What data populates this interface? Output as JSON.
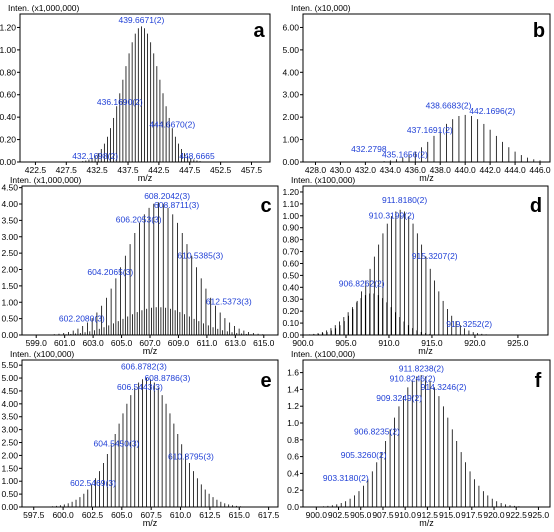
{
  "chart_data": [
    {
      "panel": "a",
      "type": "bar",
      "ylabel": "Inten. (x1,000,000)",
      "xlabel": "m/z",
      "xlim": [
        420.0,
        460.5
      ],
      "ylim": [
        0,
        1.32
      ],
      "xticks": [
        "422.5",
        "427.5",
        "432.5",
        "437.5",
        "442.5",
        "447.5",
        "452.5",
        "457.5"
      ],
      "yticks": [
        "0.00",
        "0.20",
        "0.40",
        "0.60",
        "0.80",
        "1.00",
        "1.20"
      ],
      "charge": 2,
      "apex": 439.6671,
      "apexHeight": 1.21,
      "sigma": 3.0,
      "overlaps": [],
      "annotations": [
        {
          "text": "439.6671(2)",
          "x": 439.6671,
          "y": 1.23
        },
        {
          "text": "436.1690(2)",
          "x": 436.169,
          "y": 0.5
        },
        {
          "text": "444.6670(2)",
          "x": 444.667,
          "y": 0.3
        },
        {
          "text": "432.1698(2)",
          "x": 432.1698,
          "y": 0.02
        },
        {
          "text": "448.6665",
          "x": 448.6665,
          "y": 0.02
        }
      ]
    },
    {
      "panel": "b",
      "type": "bar",
      "ylabel": "Inten. (x10,000)",
      "xlabel": "m/z",
      "xlim": [
        427.0,
        446.8
      ],
      "ylim": [
        0,
        6.6
      ],
      "xticks": [
        "428.0",
        "430.0",
        "432.0",
        "434.0",
        "436.0",
        "438.0",
        "440.0",
        "442.0",
        "444.0",
        "446.0"
      ],
      "yticks": [
        "0.00",
        "1.00",
        "2.00",
        "3.00",
        "4.00",
        "5.00",
        "6.00"
      ],
      "charge": 2,
      "apex": 440.0,
      "apexHeight": 2.1,
      "sigma": 2.3,
      "overlaps": [],
      "annotations": [
        {
          "text": "438.6683(2)",
          "x": 438.6683,
          "y": 2.35
        },
        {
          "text": "442.1696(2)",
          "x": 442.1696,
          "y": 2.1
        },
        {
          "text": "437.1691(2)",
          "x": 437.1691,
          "y": 1.25
        },
        {
          "text": "432.2798",
          "x": 432.2798,
          "y": 0.4
        },
        {
          "text": "435.1656(2)",
          "x": 435.1656,
          "y": 0.15
        }
      ]
    },
    {
      "panel": "c",
      "type": "bar",
      "ylabel": "Inten. (x1,000,000)",
      "xlabel": "m/z",
      "xlim": [
        598.0,
        616.0
      ],
      "ylim": [
        0,
        4.55
      ],
      "xticks": [
        "599.0",
        "601.0",
        "603.0",
        "605.0",
        "607.0",
        "609.0",
        "611.0",
        "613.0",
        "615.0"
      ],
      "yticks": [
        "0.00",
        "0.50",
        "1.00",
        "1.50",
        "2.00",
        "2.50",
        "3.00",
        "3.50",
        "4.00",
        "4.50"
      ],
      "charge": 3,
      "apex": 607.6,
      "apexHeight": 4.05,
      "sigma": 2.3,
      "overlaps": [
        {
          "apex": 607.6,
          "height": 0.85,
          "sigma": 2.4,
          "shift": 0.1667
        }
      ],
      "annotations": [
        {
          "text": "608.2042(3)",
          "x": 608.2042,
          "y": 4.13
        },
        {
          "text": "608.8711(3)",
          "x": 608.8711,
          "y": 3.85
        },
        {
          "text": "606.2053(3)",
          "x": 606.2053,
          "y": 3.4
        },
        {
          "text": "610.5385(3)",
          "x": 610.5385,
          "y": 2.3
        },
        {
          "text": "604.2065(3)",
          "x": 604.2065,
          "y": 1.8
        },
        {
          "text": "612.5373(3)",
          "x": 612.5373,
          "y": 0.9
        },
        {
          "text": "602.2080(3)",
          "x": 602.208,
          "y": 0.38
        }
      ]
    },
    {
      "panel": "d",
      "type": "bar",
      "ylabel": "Inten. (x100,000)",
      "xlabel": "m/z",
      "xlim": [
        900.0,
        928.5
      ],
      "ylim": [
        0,
        1.25
      ],
      "xticks": [
        "900.0",
        "905.0",
        "910.0",
        "915.0",
        "920.0",
        "925.0"
      ],
      "yticks": [
        "0.00",
        "0.10",
        "0.20",
        "0.30",
        "0.40",
        "0.50",
        "0.60",
        "0.70",
        "0.80",
        "0.90",
        "1.00",
        "1.10",
        "1.20"
      ],
      "charge": 2,
      "apex": 911.3,
      "apexHeight": 1.05,
      "sigma": 3.1,
      "overlaps": [
        {
          "apex": 908.0,
          "height": 0.35,
          "sigma": 2.5,
          "shift": 0.25
        }
      ],
      "annotations": [
        {
          "text": "911.8180(2)",
          "x": 911.818,
          "y": 1.1
        },
        {
          "text": "910.3199(2)",
          "x": 910.3199,
          "y": 0.97
        },
        {
          "text": "915.3207(2)",
          "x": 915.3207,
          "y": 0.63
        },
        {
          "text": "906.8262(2)",
          "x": 906.8262,
          "y": 0.4
        },
        {
          "text": "919.3252(2)",
          "x": 919.3252,
          "y": 0.06
        }
      ]
    },
    {
      "panel": "e",
      "type": "bar",
      "ylabel": "Inten. (x100,000)",
      "xlabel": "m/z",
      "xlim": [
        596.5,
        618.3
      ],
      "ylim": [
        0,
        5.7
      ],
      "xticks": [
        "597.5",
        "600.0",
        "602.5",
        "605.0",
        "607.5",
        "610.0",
        "612.5",
        "615.0",
        "617.5"
      ],
      "yticks": [
        "0.00",
        "0.50",
        "1.00",
        "1.50",
        "2.00",
        "2.50",
        "3.00",
        "3.50",
        "4.00",
        "4.50",
        "5.00",
        "5.50"
      ],
      "charge": 3,
      "apex": 607.1,
      "apexHeight": 5.0,
      "sigma": 2.5,
      "overlaps": [],
      "annotations": [
        {
          "text": "606.8782(3)",
          "x": 606.8782,
          "y": 5.3
        },
        {
          "text": "608.8786(3)",
          "x": 608.8786,
          "y": 4.85
        },
        {
          "text": "606.5443(3)",
          "x": 606.5443,
          "y": 4.5
        },
        {
          "text": "604.5450(3)",
          "x": 604.545,
          "y": 2.3
        },
        {
          "text": "610.8795(3)",
          "x": 610.8795,
          "y": 1.8
        },
        {
          "text": "602.5469(3)",
          "x": 602.5469,
          "y": 0.78
        }
      ]
    },
    {
      "panel": "f",
      "type": "bar",
      "ylabel": "Inten. (x100,000)",
      "xlabel": "m/z",
      "xlim": [
        898.5,
        926.3
      ],
      "ylim": [
        0,
        1.75
      ],
      "xticks": [
        "900.0",
        "902.5",
        "905.0",
        "907.5",
        "910.0",
        "912.5",
        "915.0",
        "917.5",
        "920.0",
        "922.5",
        "925.0"
      ],
      "yticks": [
        "0.0",
        "0.2",
        "0.4",
        "0.6",
        "0.8",
        "1.0",
        "1.2",
        "1.4",
        "1.6"
      ],
      "charge": 2,
      "apex": 911.8,
      "apexHeight": 1.57,
      "sigma": 3.4,
      "overlaps": [],
      "annotations": [
        {
          "text": "911.8238(2)",
          "x": 911.8238,
          "y": 1.6
        },
        {
          "text": "910.8246(2)",
          "x": 910.8246,
          "y": 1.48
        },
        {
          "text": "914.3246(2)",
          "x": 914.3246,
          "y": 1.38
        },
        {
          "text": "909.3249(2)",
          "x": 909.3249,
          "y": 1.25
        },
        {
          "text": "906.8235(2)",
          "x": 906.8235,
          "y": 0.85
        },
        {
          "text": "905.3260(2)",
          "x": 905.326,
          "y": 0.57
        },
        {
          "text": "903.3180(2)",
          "x": 903.318,
          "y": 0.3
        }
      ]
    }
  ]
}
